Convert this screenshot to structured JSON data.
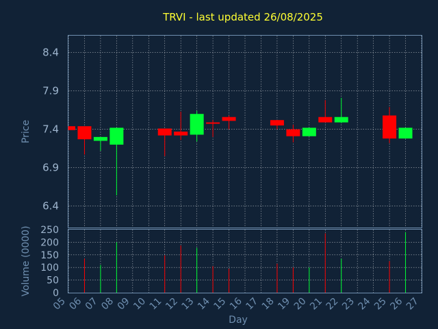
{
  "chart_data": {
    "type": "candlestick",
    "title": "TRVI - last updated 26/08/2025",
    "xlabel": "Day",
    "price_panel": {
      "ylabel": "Price",
      "yticks": [
        "6.4",
        "6.9",
        "7.4",
        "7.9",
        "8.4"
      ],
      "ylim": [
        6.12,
        8.62
      ]
    },
    "volume_panel": {
      "ylabel": "Volume (0000)",
      "yticks": [
        "0",
        "50",
        "100",
        "150",
        "200",
        "250"
      ],
      "ylim": [
        0,
        250
      ]
    },
    "x_ticks": [
      "05",
      "06",
      "07",
      "08",
      "09",
      "10",
      "11",
      "12",
      "13",
      "14",
      "15",
      "16",
      "17",
      "18",
      "19",
      "20",
      "21",
      "22",
      "23",
      "24",
      "25",
      "26",
      "27"
    ],
    "colors": {
      "up": "#00ff33",
      "down": "#ff0000",
      "grid": "#ffffff",
      "axis": "#6f8fb0"
    },
    "candles": [
      {
        "day": "05",
        "open": 7.44,
        "high": 7.44,
        "low": 7.39,
        "close": 7.39,
        "volume": 0
      },
      {
        "day": "06",
        "open": 7.44,
        "high": 7.44,
        "low": 7.07,
        "close": 7.27,
        "volume": 135
      },
      {
        "day": "07",
        "open": 7.25,
        "high": 7.3,
        "low": 7.12,
        "close": 7.3,
        "volume": 110
      },
      {
        "day": "08",
        "open": 7.2,
        "high": 7.42,
        "low": 6.54,
        "close": 7.42,
        "volume": 200
      },
      {
        "day": "11",
        "open": 7.41,
        "high": 7.41,
        "low": 7.05,
        "close": 7.32,
        "volume": 148
      },
      {
        "day": "12",
        "open": 7.37,
        "high": 7.63,
        "low": 7.26,
        "close": 7.32,
        "volume": 187
      },
      {
        "day": "13",
        "open": 7.33,
        "high": 7.64,
        "low": 7.24,
        "close": 7.6,
        "volume": 178
      },
      {
        "day": "14",
        "open": 7.49,
        "high": 7.52,
        "low": 7.3,
        "close": 7.48,
        "volume": 105
      },
      {
        "day": "15",
        "open": 7.56,
        "high": 7.58,
        "low": 7.4,
        "close": 7.51,
        "volume": 95
      },
      {
        "day": "18",
        "open": 7.52,
        "high": 7.52,
        "low": 7.4,
        "close": 7.45,
        "volume": 115
      },
      {
        "day": "19",
        "open": 7.4,
        "high": 7.46,
        "low": 7.23,
        "close": 7.31,
        "volume": 100
      },
      {
        "day": "20",
        "open": 7.31,
        "high": 7.42,
        "low": 7.31,
        "close": 7.42,
        "volume": 100
      },
      {
        "day": "21",
        "open": 7.56,
        "high": 7.78,
        "low": 7.49,
        "close": 7.49,
        "volume": 235
      },
      {
        "day": "22",
        "open": 7.49,
        "high": 7.81,
        "low": 7.48,
        "close": 7.56,
        "volume": 135
      },
      {
        "day": "25",
        "open": 7.58,
        "high": 7.69,
        "low": 7.22,
        "close": 7.28,
        "volume": 125
      },
      {
        "day": "26",
        "open": 7.28,
        "high": 7.42,
        "low": 7.28,
        "close": 7.42,
        "volume": 240
      }
    ]
  }
}
